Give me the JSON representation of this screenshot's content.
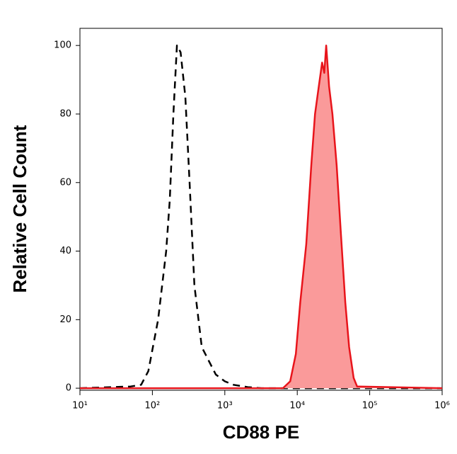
{
  "chart_data": {
    "type": "line",
    "xlabel": "CD88 PE",
    "ylabel": "Relative Cell Count",
    "xscale": "log",
    "xlim": [
      10,
      1000000
    ],
    "xticks": [
      {
        "value": 10,
        "label": "10¹"
      },
      {
        "value": 100,
        "label": "10²"
      },
      {
        "value": 1000,
        "label": "10³"
      },
      {
        "value": 10000,
        "label": "10⁴"
      },
      {
        "value": 100000,
        "label": "10⁵"
      },
      {
        "value": 1000000,
        "label": "10⁶"
      }
    ],
    "ylim": [
      -0.6,
      105
    ],
    "yticks": [
      0,
      20,
      40,
      60,
      80,
      100
    ],
    "series": [
      {
        "color": "#000000",
        "line_style": "dashed",
        "filled": false,
        "x": [
          10,
          50,
          70,
          88,
          120,
          155,
          174,
          195,
          218,
          245,
          285,
          326,
          380,
          480,
          600,
          750,
          1000,
          1320,
          2070,
          3220,
          1000000
        ],
        "values": [
          0,
          0.5,
          1,
          5,
          20,
          40,
          55,
          80,
          100,
          98,
          85,
          60,
          30,
          12,
          8,
          4,
          2,
          1,
          0.3,
          0,
          0
        ]
      },
      {
        "color": "#e8141b",
        "fill": "#fa9a9a",
        "line_style": "solid",
        "filled": true,
        "x": [
          10,
          6340,
          7980,
          9550,
          11000,
          13300,
          15600,
          17600,
          19800,
          22000,
          23600,
          25100,
          27500,
          30600,
          35000,
          40000,
          46000,
          52000,
          60000,
          67000,
          1000000
        ],
        "values": [
          0,
          0,
          2,
          10,
          25,
          42,
          65,
          80,
          88,
          95,
          92,
          100,
          88,
          80,
          65,
          45,
          25,
          12,
          3,
          0.5,
          0
        ]
      }
    ]
  }
}
